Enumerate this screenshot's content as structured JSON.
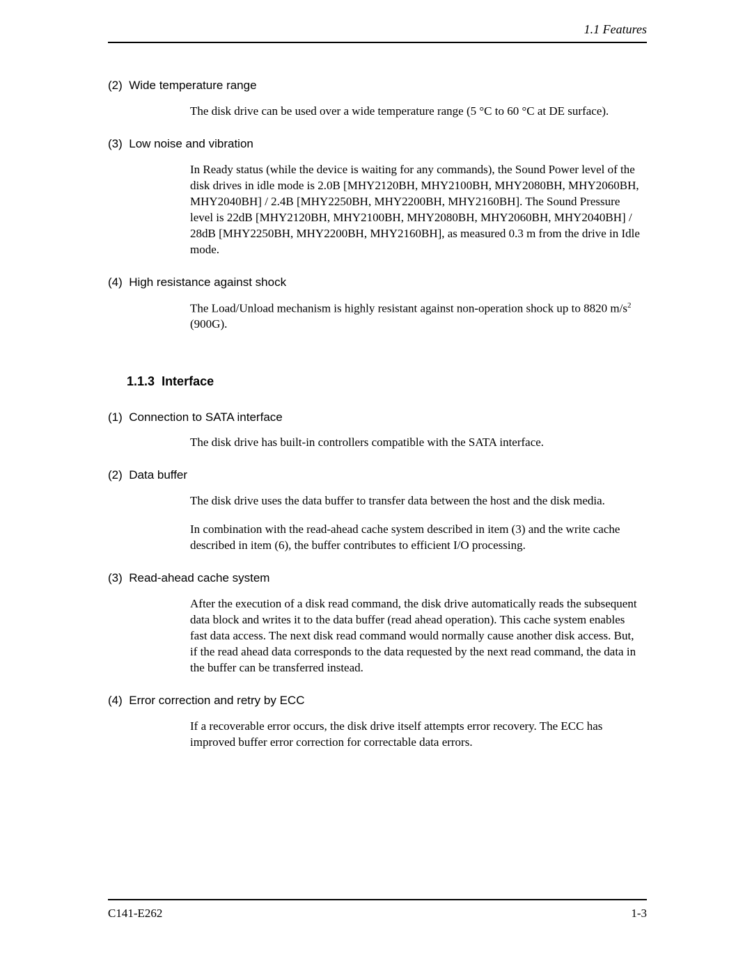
{
  "header": {
    "section_label": "1.1  Features"
  },
  "items1": [
    {
      "num": "(2)",
      "title": "Wide temperature range",
      "paras": [
        "The disk drive can be used over a wide temperature range (5 °C to 60 °C at DE surface)."
      ]
    },
    {
      "num": "(3)",
      "title": "Low noise and vibration",
      "paras": [
        "In Ready status (while the device is waiting for any commands), the Sound Power level of the disk drives in idle mode is 2.0B [MHY2120BH, MHY2100BH, MHY2080BH, MHY2060BH, MHY2040BH] / 2.4B [MHY2250BH, MHY2200BH, MHY2160BH].  The Sound Pressure level is 22dB [MHY2120BH, MHY2100BH, MHY2080BH, MHY2060BH, MHY2040BH] / 28dB [MHY2250BH, MHY2200BH, MHY2160BH], as measured 0.3 m from the drive in Idle mode."
      ]
    },
    {
      "num": "(4)",
      "title": "High resistance against shock",
      "paras": []
    }
  ],
  "shock_para_prefix": "The Load/Unload mechanism is highly resistant against non-operation shock up to 8820 m/s",
  "shock_para_sup": "2",
  "shock_para_suffix": " (900G).",
  "section": {
    "num": "1.1.3",
    "title": "Interface"
  },
  "items2": [
    {
      "num": "(1)",
      "title": "Connection to SATA interface",
      "paras": [
        "The disk drive has built-in controllers compatible with the SATA interface."
      ]
    },
    {
      "num": "(2)",
      "title": "Data buffer",
      "paras": [
        "The disk drive uses the data buffer to transfer data between the host and the disk media.",
        "In combination with the read-ahead cache system described in item (3) and the write cache described in item (6), the buffer contributes to efficient I/O processing."
      ]
    },
    {
      "num": "(3)",
      "title": "Read-ahead cache system",
      "paras": [
        "After the execution of a disk read command, the disk drive automatically reads the subsequent data block and writes it to the data buffer (read ahead operation).  This cache system enables fast data access.  The next disk read command would normally cause another disk access.  But, if the read ahead data corresponds to the data requested by the next read command, the data in the buffer can be transferred instead."
      ]
    },
    {
      "num": "(4)",
      "title": "Error correction and retry by ECC",
      "paras": [
        "If a recoverable error occurs, the disk drive itself attempts error recovery.  The ECC has improved buffer error correction for correctable data errors."
      ]
    }
  ],
  "footer": {
    "doc_id": "C141-E262",
    "page_num": "1-3"
  }
}
